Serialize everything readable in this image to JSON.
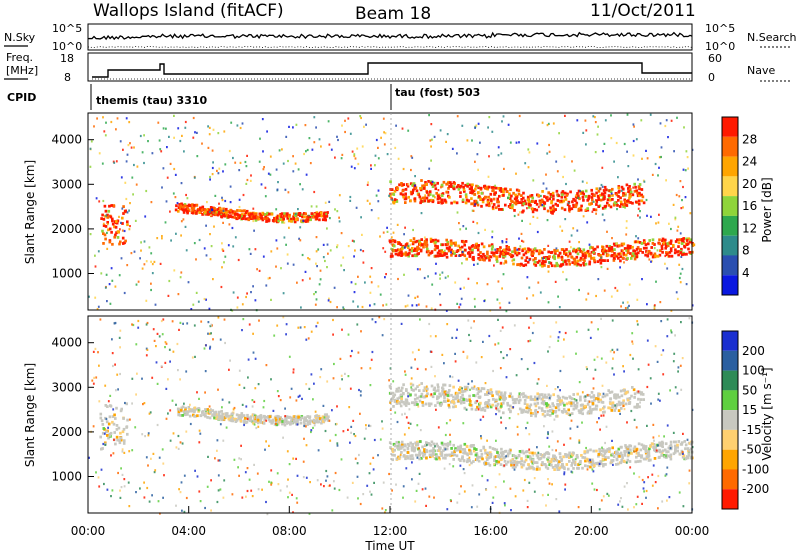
{
  "header": {
    "station": "Wallops Island (fitACF)",
    "beam": "Beam 18",
    "date": "11/Oct/2011"
  },
  "strip_panels": {
    "nsky_label": "N.Sky",
    "nsearch_label": "N.Search",
    "freq_label": "Freq.",
    "freq_unit": "[MHz]",
    "nave_label": "Nave",
    "cpid_label": "CPID",
    "noise_left_ticks": [
      "10^5",
      "10^0"
    ],
    "noise_right_ticks": [
      "10^5",
      "10^0"
    ],
    "freq_left_ticks": [
      "18",
      "8"
    ],
    "nave_right_ticks": [
      "60",
      "0"
    ],
    "cpid_modes": [
      {
        "name": "themis (tau) 3310",
        "start_hour": 0
      },
      {
        "name": "tau (fost) 503",
        "start_hour": 12
      }
    ]
  },
  "colorbars": {
    "power": {
      "label": "Power [dB]",
      "ticks": [
        "28",
        "24",
        "20",
        "16",
        "12",
        "8",
        "4"
      ],
      "colors": [
        "#ff1a00",
        "#ff6a00",
        "#ffa500",
        "#ffd54a",
        "#8fd43a",
        "#2ea84e",
        "#2e8b8b",
        "#2a4fb0",
        "#0a18e0"
      ]
    },
    "velocity": {
      "label": "Velocity [m s⁻¹]",
      "ticks": [
        "200",
        "100",
        "50",
        "15",
        "-15",
        "-50",
        "-100",
        "-200"
      ],
      "colors": [
        "#1a2fd0",
        "#2a5fa0",
        "#2e8b57",
        "#5fcf40",
        "#c8c8c0",
        "#ffd070",
        "#ffa500",
        "#ff6a00",
        "#ff1a00"
      ]
    }
  },
  "chart_data": {
    "type": "heatmap",
    "title": "Wallops Island (fitACF)",
    "xlabel": "Time UT",
    "ylabel": "Slant Range [km]",
    "x_ticks": [
      "00:00",
      "04:00",
      "08:00",
      "12:00",
      "16:00",
      "20:00",
      "00:00"
    ],
    "xlim_hours": [
      0,
      24
    ],
    "y_ticks": [
      1000,
      2000,
      3000,
      4000
    ],
    "ylim_km": [
      180,
      4600
    ],
    "features": {
      "main_echo_band": {
        "segments": [
          {
            "t": [
              0.5,
              1.5
            ],
            "range_km": [
              1600,
              2600
            ]
          },
          {
            "t": [
              3.5,
              9.5
            ],
            "range_km": [
              2300,
              2500
            ]
          },
          {
            "t": [
              12,
              22
            ],
            "range_km": [
              2500,
              3000
            ]
          },
          {
            "t": [
              12,
              24
            ],
            "range_km": [
              1300,
              1700
            ]
          }
        ]
      },
      "power_peak_db": 28,
      "velocity_range_ms": [
        -200,
        200
      ]
    }
  }
}
